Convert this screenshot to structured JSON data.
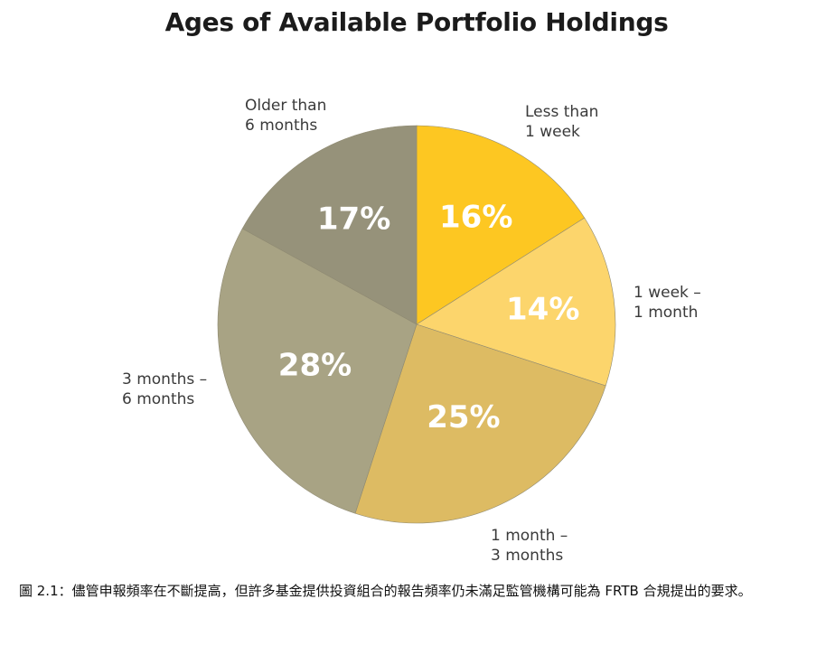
{
  "chart_data": {
    "type": "pie",
    "title": "Ages of Available Portfolio Holdings",
    "categories": [
      "Less than 1 week",
      "1 week – 1 month",
      "1 month – 3 months",
      "3 months – 6 months",
      "Older than 6 months"
    ],
    "label_lines": [
      [
        "Less than",
        "1 week"
      ],
      [
        "1 week –",
        "1 month"
      ],
      [
        "1 month –",
        "3 months"
      ],
      [
        "3 months –",
        "6 months"
      ],
      [
        "Older than",
        "6 months"
      ]
    ],
    "values": [
      16,
      14,
      25,
      28,
      17
    ],
    "value_labels": [
      "16%",
      "14%",
      "25%",
      "28%",
      "17%"
    ],
    "colors": [
      "#FDC722",
      "#FCD56C",
      "#DDBB63",
      "#A8A384",
      "#96927A"
    ]
  },
  "caption": "圖 2.1：儘管申報頻率在不斷提高，但許多基金提供投資組合的報告頻率仍未滿足監管機構可能為 FRTB 合規提出的要求。"
}
